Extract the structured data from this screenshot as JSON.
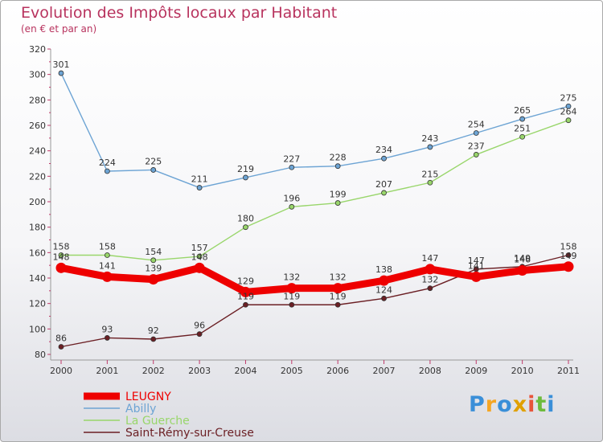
{
  "header": {
    "title": "Evolution des Impôts locaux par Habitant",
    "subtitle": "(en € et par an)"
  },
  "logo": {
    "text": "Proxiti",
    "letters": [
      "P",
      "r",
      "o",
      "x",
      "i",
      "t",
      "i"
    ],
    "colors": [
      "#3a8fd8",
      "#f5a623",
      "#3a8fd8",
      "#e0a000",
      "#e8543a",
      "#6dbb3c",
      "#3a8fd8"
    ]
  },
  "chart_data": {
    "type": "line",
    "title": "Evolution des Impôts locaux par Habitant",
    "subtitle": "(en € et par an)",
    "xlabel": "",
    "ylabel": "",
    "grid": false,
    "legend_position": "bottom-left",
    "ylim": [
      80,
      320
    ],
    "yticks": [
      80,
      100,
      120,
      140,
      160,
      180,
      200,
      220,
      240,
      260,
      280,
      300,
      320
    ],
    "categories": [
      "2000",
      "2001",
      "2002",
      "2003",
      "2004",
      "2005",
      "2006",
      "2007",
      "2008",
      "2009",
      "2010",
      "2011"
    ],
    "series": [
      {
        "name": "Saint-Rémy-sur-Creuse",
        "color": "#6b1f24",
        "values": [
          86,
          93,
          92,
          96,
          119,
          119,
          119,
          124,
          132,
          147,
          149,
          158
        ]
      },
      {
        "name": "La Guerche",
        "color": "#99d66b",
        "values": [
          158,
          158,
          154,
          157,
          180,
          196,
          199,
          207,
          215,
          237,
          251,
          264
        ]
      },
      {
        "name": "Abilly",
        "color": "#6da4d4",
        "values": [
          301,
          224,
          225,
          211,
          219,
          227,
          228,
          234,
          243,
          254,
          265,
          275
        ]
      },
      {
        "name": "LEUGNY",
        "color": "#ee0000",
        "values": [
          148,
          141,
          139,
          148,
          129,
          132,
          132,
          138,
          147,
          141,
          146,
          149
        ]
      }
    ],
    "legend": [
      "LEUGNY",
      "Abilly",
      "La Guerche",
      "Saint-Rémy-sur-Creuse"
    ]
  }
}
